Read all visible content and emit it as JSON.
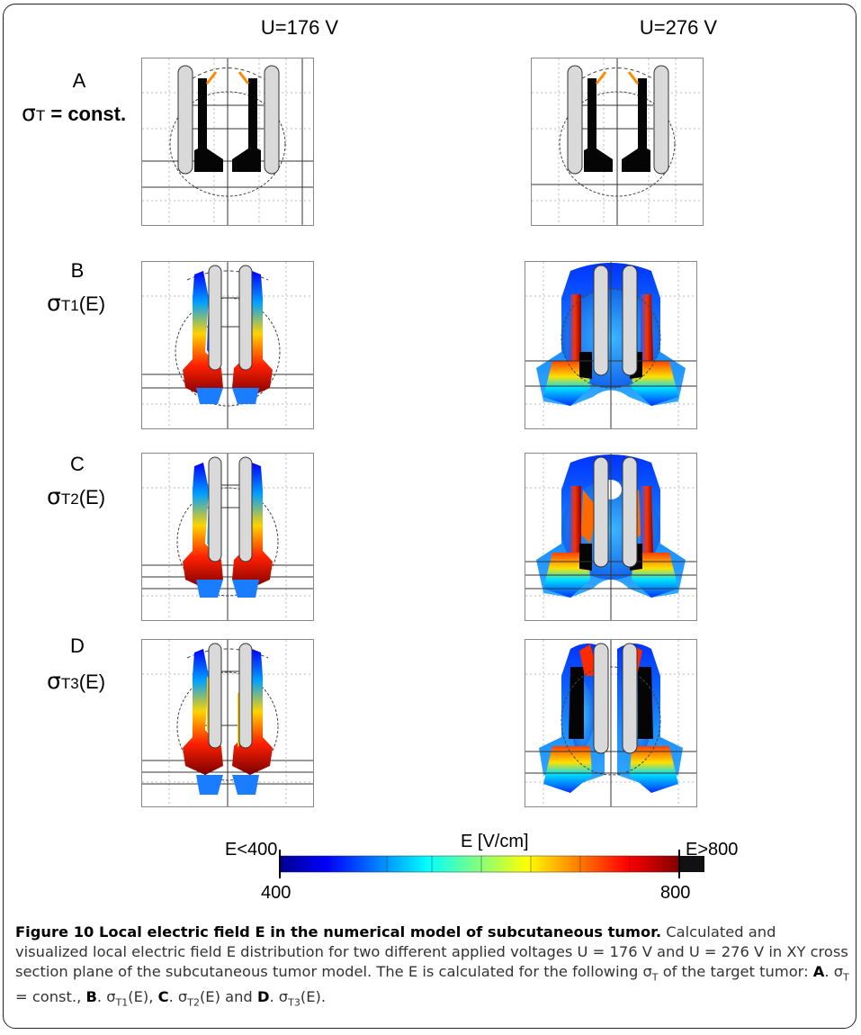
{
  "column_headers": [
    "U=176 V",
    "U=276 V"
  ],
  "rows": [
    {
      "letter": "A",
      "sigma_sub": "T",
      "sigma_tail": " = const."
    },
    {
      "letter": "B",
      "sigma_sub": "T1",
      "sigma_tail": "(E)"
    },
    {
      "letter": "C",
      "sigma_sub": "T2",
      "sigma_tail": "(E)"
    },
    {
      "letter": "D",
      "sigma_sub": "T3",
      "sigma_tail": "(E)"
    }
  ],
  "sigma_symbol": "σ",
  "colorbar": {
    "label": "E [V/cm]",
    "left_label": "E<400",
    "right_label": "E>800",
    "min_tick": "400",
    "max_tick": "800",
    "colors": [
      "#00008f",
      "#0000ff",
      "#00ffff",
      "#ffff00",
      "#ff0000",
      "#800000",
      "#111111"
    ]
  },
  "caption": {
    "title": "Figure 10 Local electric field E in the numerical model of subcutaneous tumor.",
    "body": " Calculated and visualized local electric field E distribution for two different applied voltages U = 176 V and U = 276 V in XY cross section plane of the subcutaneous tumor model. The E is calculated for the following σ",
    "body_sub": "T",
    "body2": " of the target tumor: ",
    "a_label": "A",
    "a_text": ". σ",
    "a_sub": "T",
    "a_tail": " = const., ",
    "b_label": "B",
    "b_text": ". σ",
    "b_sub": "T1",
    "b_tail": "(E), ",
    "c_label": "C",
    "c_text": ". σ",
    "c_sub": "T2",
    "c_tail": "(E) and ",
    "d_label": "D",
    "d_text": ". σ",
    "d_sub": "T3",
    "d_tail": "(E)."
  }
}
